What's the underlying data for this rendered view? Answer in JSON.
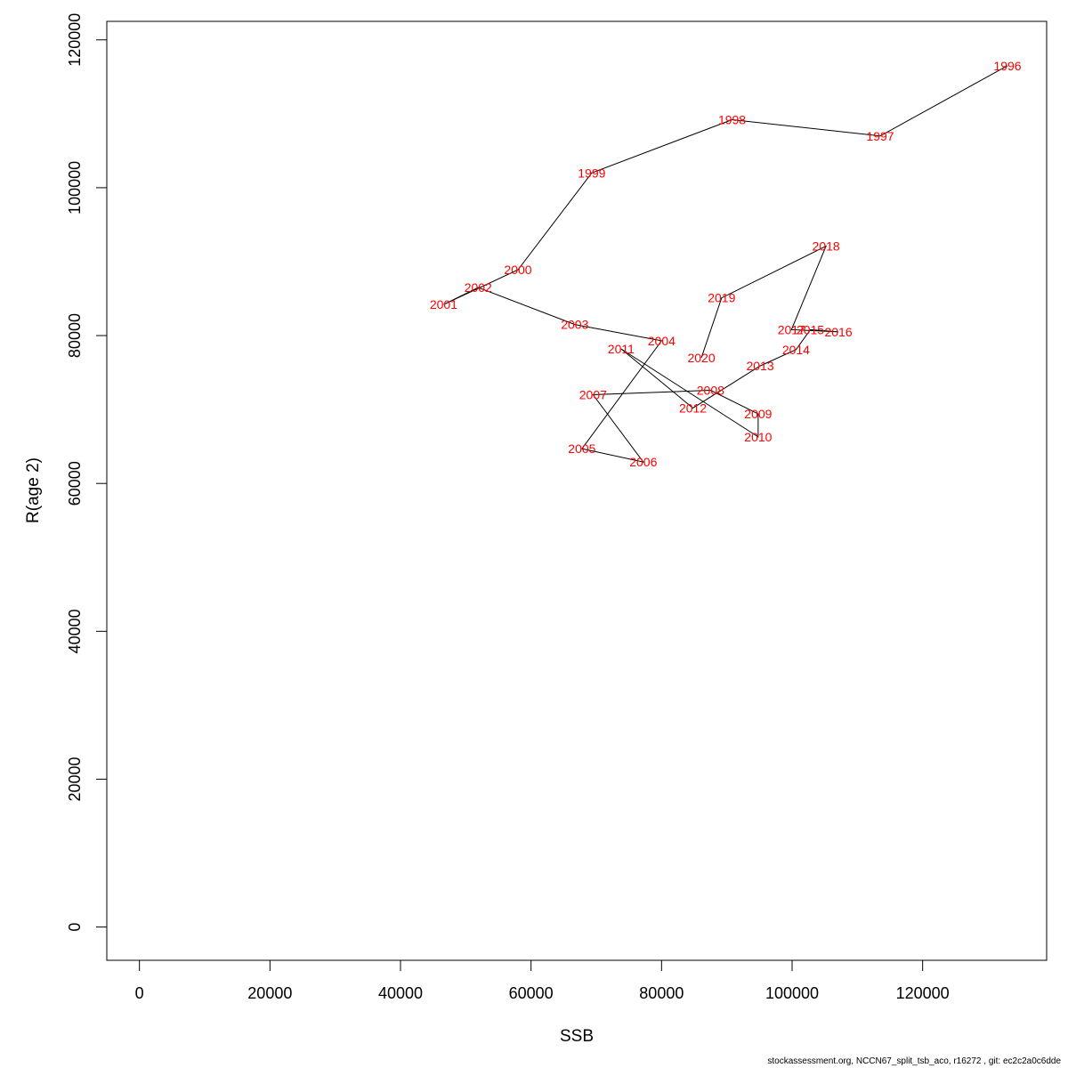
{
  "chart_data": {
    "type": "line",
    "xlabel": "SSB",
    "ylabel": "R(age 2)",
    "xlim": [
      -5000,
      139000
    ],
    "ylim": [
      -4500,
      122500
    ],
    "x_ticks": [
      0,
      20000,
      40000,
      60000,
      80000,
      100000,
      120000
    ],
    "y_ticks": [
      0,
      20000,
      40000,
      60000,
      80000,
      100000,
      120000
    ],
    "line_color": "#000000",
    "label_color": "#ff0000",
    "grid": false,
    "points": [
      {
        "year": "1996",
        "x": 133000,
        "y": 116500
      },
      {
        "year": "1997",
        "x": 113500,
        "y": 107000
      },
      {
        "year": "1998",
        "x": 90800,
        "y": 109200
      },
      {
        "year": "1999",
        "x": 69300,
        "y": 102000
      },
      {
        "year": "2000",
        "x": 58000,
        "y": 88900
      },
      {
        "year": "2001",
        "x": 46600,
        "y": 84200
      },
      {
        "year": "2002",
        "x": 51900,
        "y": 86500
      },
      {
        "year": "2003",
        "x": 66700,
        "y": 81500
      },
      {
        "year": "2004",
        "x": 80000,
        "y": 79300
      },
      {
        "year": "2005",
        "x": 67800,
        "y": 64700
      },
      {
        "year": "2006",
        "x": 77200,
        "y": 62900
      },
      {
        "year": "2007",
        "x": 69500,
        "y": 72000
      },
      {
        "year": "2008",
        "x": 87500,
        "y": 72600
      },
      {
        "year": "2009",
        "x": 94800,
        "y": 69400
      },
      {
        "year": "2010",
        "x": 94800,
        "y": 66300
      },
      {
        "year": "2011",
        "x": 73800,
        "y": 78200
      },
      {
        "year": "2012",
        "x": 84800,
        "y": 70200
      },
      {
        "year": "2013",
        "x": 95100,
        "y": 75900
      },
      {
        "year": "2014",
        "x": 100600,
        "y": 78100
      },
      {
        "year": "2015",
        "x": 102800,
        "y": 80800
      },
      {
        "year": "2016",
        "x": 107100,
        "y": 80500
      },
      {
        "year": "2017",
        "x": 99900,
        "y": 80800
      },
      {
        "year": "2018",
        "x": 105200,
        "y": 92100
      },
      {
        "year": "2019",
        "x": 89200,
        "y": 85100
      },
      {
        "year": "2020",
        "x": 86100,
        "y": 77000
      }
    ]
  },
  "footer": "stockassessment.org, NCCN67_split_tsb_aco, r16272 , git: ec2c2a0c6dde"
}
